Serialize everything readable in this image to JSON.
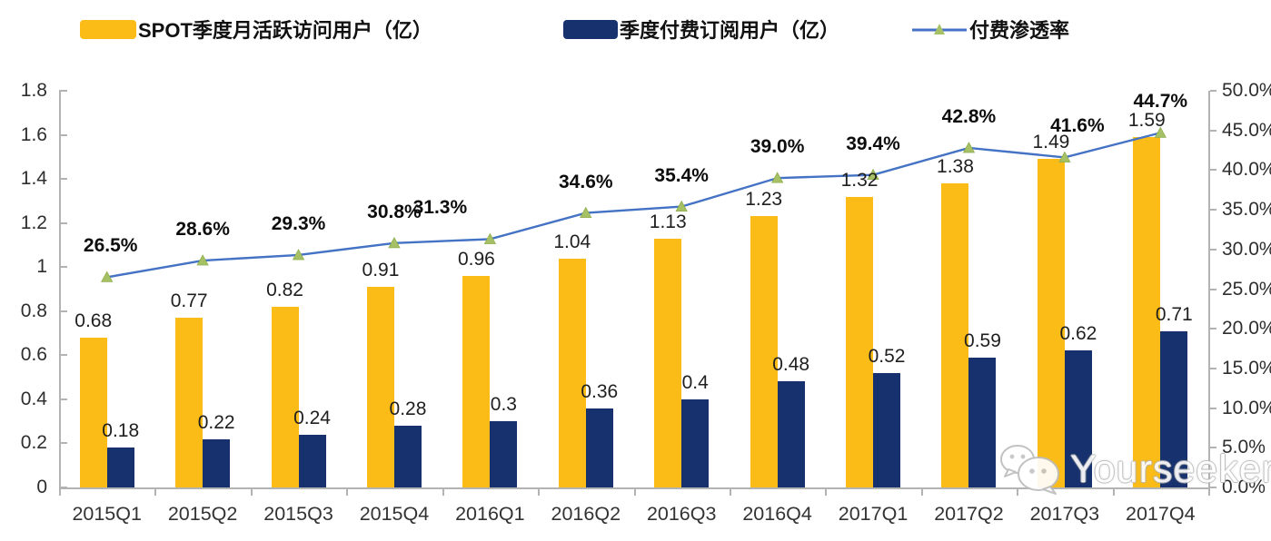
{
  "colors": {
    "mau_bar": "#FBBC17",
    "subs_bar": "#16316D",
    "line": "#4472C4",
    "marker": "#A6C065",
    "marker_edge": "#8FAE4F",
    "axis": "#B3B3B3"
  },
  "legend": [
    {
      "label": "SPOT季度月活跃访问用户（亿）",
      "swatch": "bar-yellow"
    },
    {
      "label": "季度付费订阅用户（亿）",
      "swatch": "bar-navy"
    },
    {
      "label": "付费渗透率",
      "swatch": "line-marker"
    }
  ],
  "watermark": {
    "text": "Yourseeker",
    "icon": "wechat-icon"
  },
  "chart_data": {
    "type": "bar+line",
    "categories": [
      "2015Q1",
      "2015Q2",
      "2015Q3",
      "2015Q4",
      "2016Q1",
      "2016Q2",
      "2016Q3",
      "2016Q4",
      "2017Q1",
      "2017Q2",
      "2017Q3",
      "2017Q4"
    ],
    "series": [
      {
        "name": "SPOT季度月活跃访问用户（亿）",
        "type": "bar",
        "axis": "left",
        "values": [
          0.68,
          0.77,
          0.82,
          0.91,
          0.96,
          1.04,
          1.13,
          1.23,
          1.32,
          1.38,
          1.49,
          1.59
        ],
        "labels": [
          "0.68",
          "0.77",
          "0.82",
          "0.91",
          "0.96",
          "1.04",
          "1.13",
          "1.23",
          "1.32",
          "1.38",
          "1.49",
          "1.59"
        ]
      },
      {
        "name": "季度付费订阅用户（亿）",
        "type": "bar",
        "axis": "left",
        "values": [
          0.18,
          0.22,
          0.24,
          0.28,
          0.3,
          0.36,
          0.4,
          0.48,
          0.52,
          0.59,
          0.62,
          0.71
        ],
        "labels": [
          "0.18",
          "0.22",
          "0.24",
          "0.28",
          "0.3",
          "0.36",
          "0.4",
          "0.48",
          "0.52",
          "0.59",
          "0.62",
          "0.71"
        ]
      },
      {
        "name": "付费渗透率",
        "type": "line",
        "axis": "right",
        "values": [
          26.5,
          28.6,
          29.3,
          30.8,
          31.3,
          34.6,
          35.4,
          39.0,
          39.4,
          42.8,
          41.6,
          44.7
        ],
        "labels": [
          "26.5%",
          "28.6%",
          "29.3%",
          "30.8%",
          "31.3%",
          "34.6%",
          "35.4%",
          "39.0%",
          "39.4%",
          "42.8%",
          "41.6%",
          "44.7%"
        ],
        "label_dx": [
          4,
          0,
          0,
          0,
          -55,
          0,
          0,
          0,
          0,
          0,
          14,
          0
        ]
      }
    ],
    "left_axis": {
      "min": 0,
      "max": 1.8,
      "step": 0.2,
      "ticks": [
        "0",
        "0.2",
        "0.4",
        "0.6",
        "0.8",
        "1",
        "1.2",
        "1.4",
        "1.6",
        "1.8"
      ]
    },
    "right_axis": {
      "min": 0,
      "max": 50,
      "step": 5,
      "ticks": [
        "0.0%",
        "5.0%",
        "10.0%",
        "15.0%",
        "20.0%",
        "25.0%",
        "30.0%",
        "35.0%",
        "40.0%",
        "45.0%",
        "50.0%"
      ]
    },
    "grid": false,
    "legend_position": "top"
  }
}
